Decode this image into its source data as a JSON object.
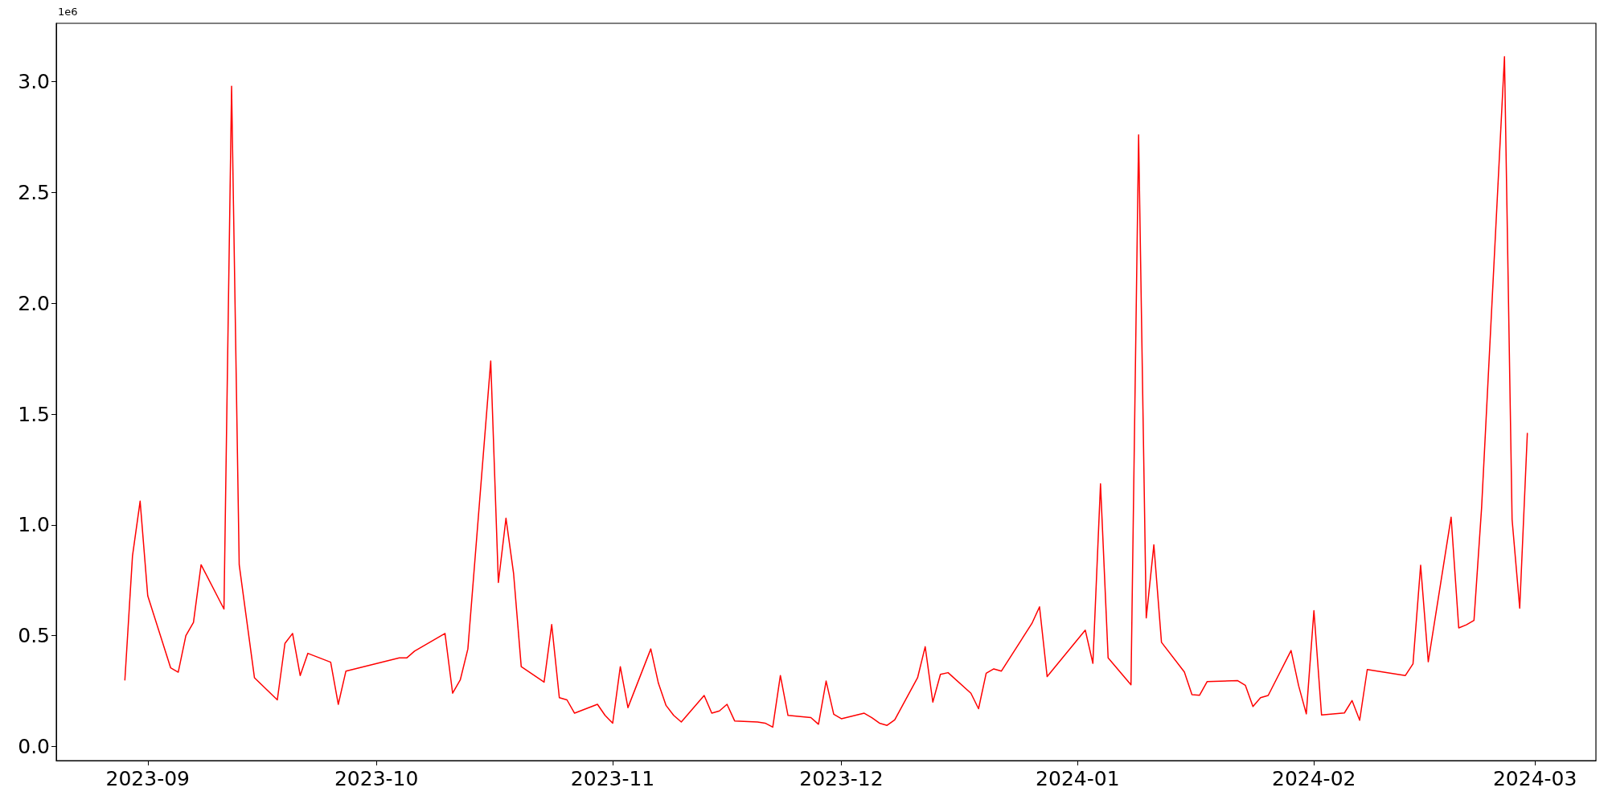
{
  "chart_data": {
    "type": "line",
    "annotations": [
      "1e6"
    ],
    "x": [
      "2023-08-29",
      "2023-08-30",
      "2023-08-31",
      "2023-09-01",
      "2023-09-04",
      "2023-09-05",
      "2023-09-06",
      "2023-09-07",
      "2023-09-08",
      "2023-09-11",
      "2023-09-12",
      "2023-09-13",
      "2023-09-15",
      "2023-09-18",
      "2023-09-19",
      "2023-09-20",
      "2023-09-21",
      "2023-09-22",
      "2023-09-25",
      "2023-09-26",
      "2023-09-27",
      "2023-10-04",
      "2023-10-05",
      "2023-10-06",
      "2023-10-10",
      "2023-10-11",
      "2023-10-12",
      "2023-10-13",
      "2023-10-16",
      "2023-10-17",
      "2023-10-18",
      "2023-10-19",
      "2023-10-20",
      "2023-10-23",
      "2023-10-24",
      "2023-10-25",
      "2023-10-26",
      "2023-10-27",
      "2023-10-30",
      "2023-10-31",
      "2023-11-01",
      "2023-11-02",
      "2023-11-03",
      "2023-11-06",
      "2023-11-07",
      "2023-11-08",
      "2023-11-09",
      "2023-11-10",
      "2023-11-13",
      "2023-11-14",
      "2023-11-15",
      "2023-11-16",
      "2023-11-17",
      "2023-11-20",
      "2023-11-21",
      "2023-11-22",
      "2023-11-23",
      "2023-11-24",
      "2023-11-27",
      "2023-11-28",
      "2023-11-29",
      "2023-11-30",
      "2023-12-01",
      "2023-12-04",
      "2023-12-05",
      "2023-12-06",
      "2023-12-07",
      "2023-12-08",
      "2023-12-11",
      "2023-12-12",
      "2023-12-13",
      "2023-12-14",
      "2023-12-15",
      "2023-12-18",
      "2023-12-19",
      "2023-12-20",
      "2023-12-21",
      "2023-12-22",
      "2023-12-26",
      "2023-12-27",
      "2023-12-28",
      "2024-01-02",
      "2024-01-03",
      "2024-01-04",
      "2024-01-05",
      "2024-01-08",
      "2024-01-09",
      "2024-01-10",
      "2024-01-11",
      "2024-01-12",
      "2024-01-15",
      "2024-01-16",
      "2024-01-17",
      "2024-01-18",
      "2024-01-22",
      "2024-01-23",
      "2024-01-24",
      "2024-01-25",
      "2024-01-26",
      "2024-01-29",
      "2024-01-30",
      "2024-01-31",
      "2024-02-01",
      "2024-02-02",
      "2024-02-05",
      "2024-02-06",
      "2024-02-07",
      "2024-02-08",
      "2024-02-13",
      "2024-02-14",
      "2024-02-15",
      "2024-02-16",
      "2024-02-19",
      "2024-02-20",
      "2024-02-21",
      "2024-02-22",
      "2024-02-23",
      "2024-02-26",
      "2024-02-27",
      "2024-02-28",
      "2024-02-29"
    ],
    "series": [
      {
        "color": "#ff0000",
        "values": [
          0.3,
          0.86,
          1.107,
          0.68,
          0.355,
          0.335,
          0.5,
          0.56,
          0.82,
          0.62,
          2.98,
          0.82,
          0.31,
          0.21,
          0.465,
          0.51,
          0.32,
          0.42,
          0.38,
          0.19,
          0.34,
          0.4,
          0.4,
          0.43,
          0.51,
          0.24,
          0.3,
          0.44,
          1.74,
          0.74,
          1.03,
          0.78,
          0.36,
          0.29,
          0.55,
          0.22,
          0.21,
          0.15,
          0.19,
          0.14,
          0.105,
          0.36,
          0.175,
          0.44,
          0.285,
          0.185,
          0.14,
          0.11,
          0.23,
          0.15,
          0.16,
          0.19,
          0.115,
          0.11,
          0.105,
          0.087,
          0.32,
          0.14,
          0.13,
          0.1,
          0.295,
          0.145,
          0.125,
          0.15,
          0.13,
          0.105,
          0.095,
          0.12,
          0.31,
          0.45,
          0.2,
          0.325,
          0.333,
          0.24,
          0.17,
          0.33,
          0.35,
          0.34,
          0.555,
          0.63,
          0.315,
          0.525,
          0.375,
          1.185,
          0.4,
          0.278,
          2.76,
          0.58,
          0.91,
          0.47,
          0.336,
          0.234,
          0.231,
          0.293,
          0.297,
          0.276,
          0.18,
          0.22,
          0.23,
          0.433,
          0.273,
          0.147,
          0.613,
          0.142,
          0.151,
          0.207,
          0.118,
          0.347,
          0.32,
          0.373,
          0.818,
          0.382,
          1.035,
          0.535,
          0.549,
          0.569,
          1.078,
          3.113,
          1.024,
          0.624,
          1.413
        ]
      }
    ],
    "xlim": [
      "2023-08-20",
      "2024-03-09"
    ],
    "xticks": [
      {
        "value": "2023-09-01",
        "label": "2023-09"
      },
      {
        "value": "2023-10-01",
        "label": "2023-10"
      },
      {
        "value": "2023-11-01",
        "label": "2023-11"
      },
      {
        "value": "2023-12-01",
        "label": "2023-12"
      },
      {
        "value": "2024-01-01",
        "label": "2024-01"
      },
      {
        "value": "2024-02-01",
        "label": "2024-02"
      },
      {
        "value": "2024-03-01",
        "label": "2024-03"
      }
    ],
    "ylim": [
      -0.064,
      3.264
    ],
    "yticks": [
      {
        "value": 0,
        "label": "0.0"
      },
      0.5,
      {
        "value": 1,
        "label": "1.0"
      },
      1.5,
      {
        "value": 2,
        "label": "2.0"
      },
      2.5,
      {
        "value": 3,
        "label": "3.0"
      }
    ],
    "grid": false,
    "marker": "none",
    "line_style": "solid"
  }
}
